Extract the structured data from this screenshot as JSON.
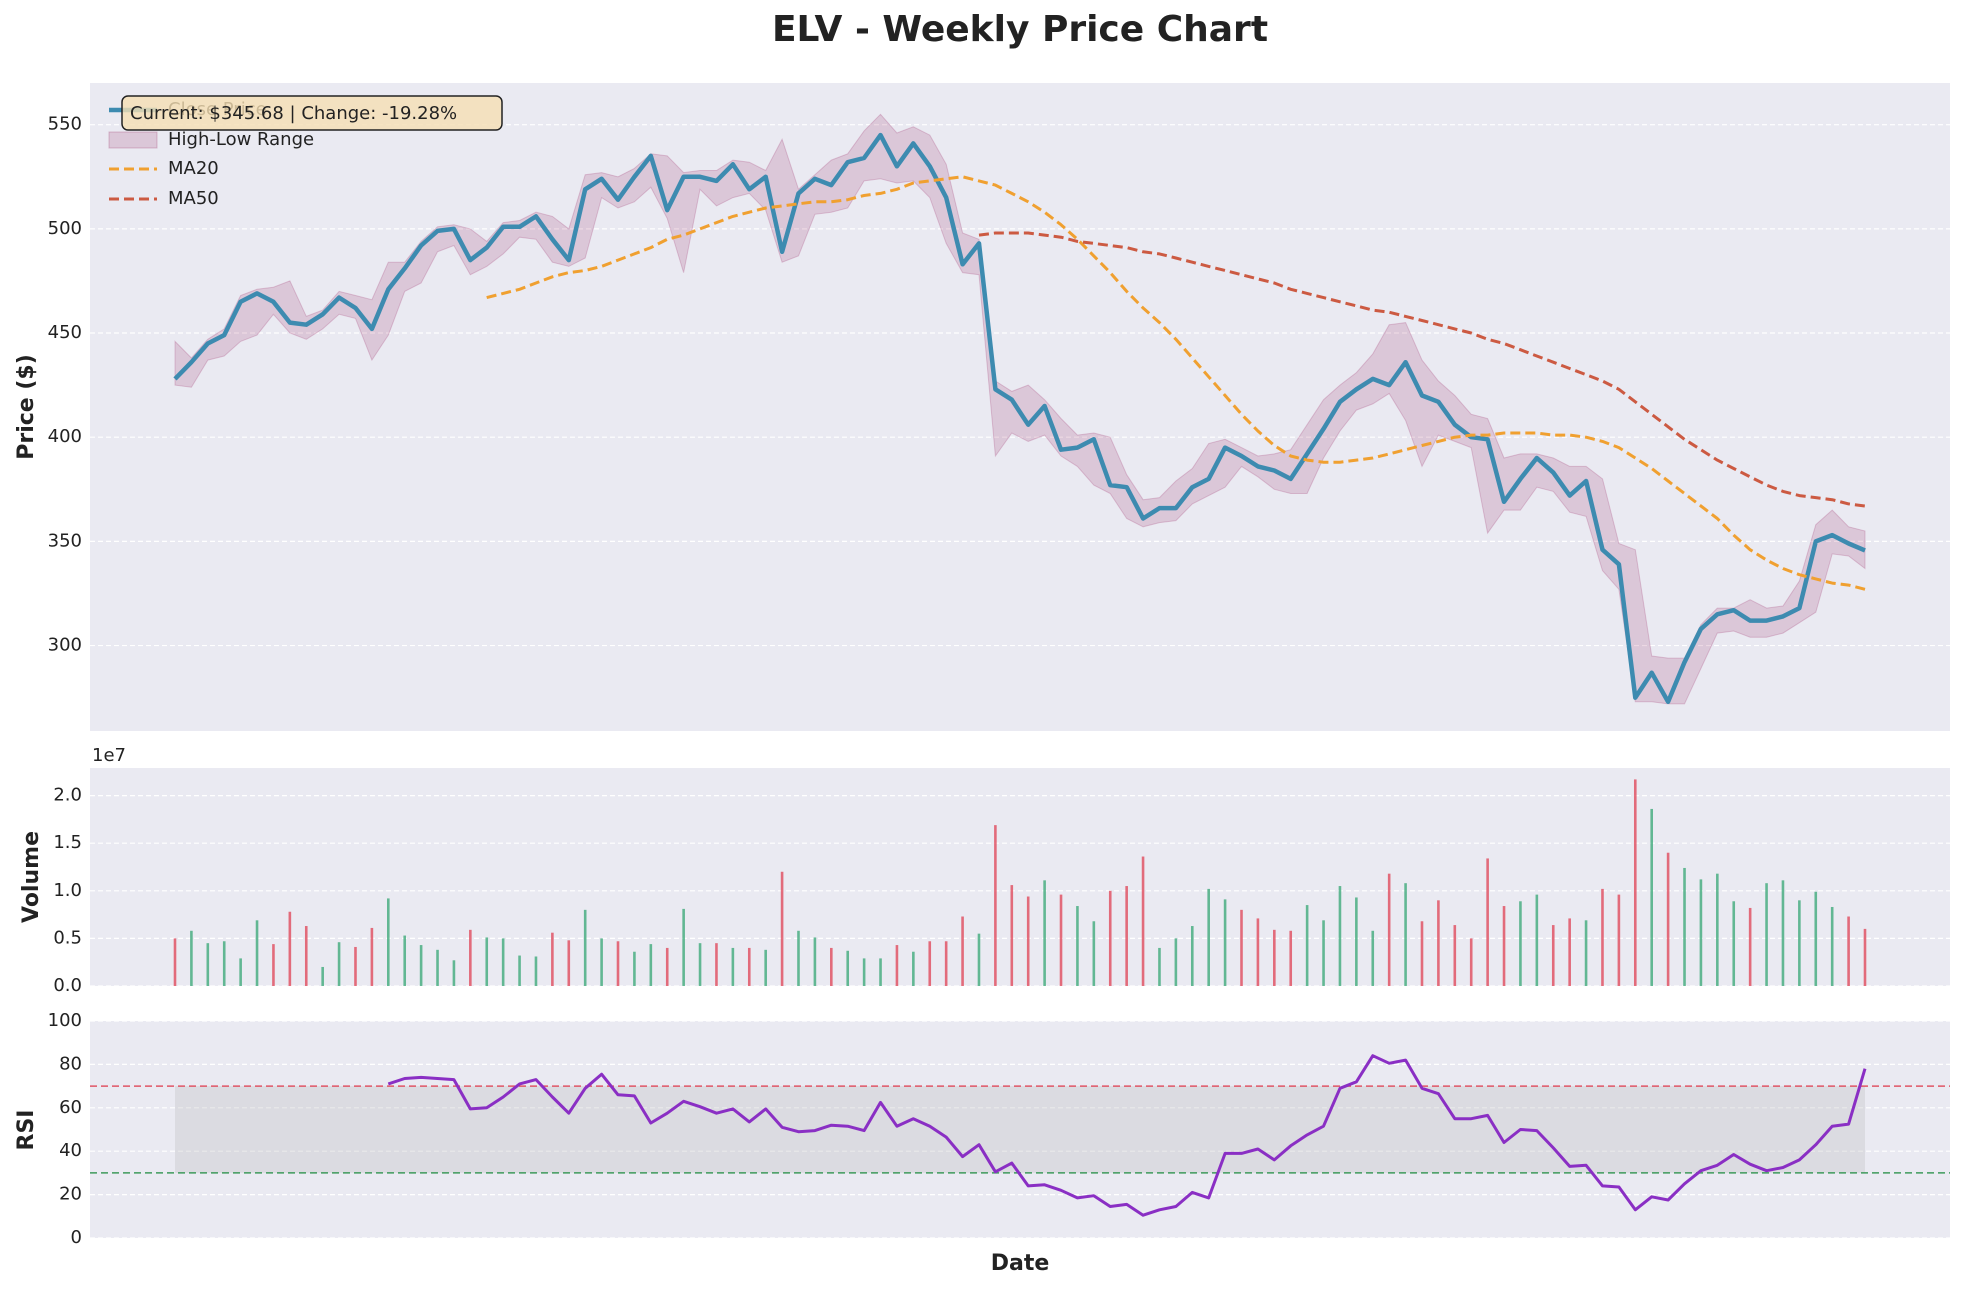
{
  "chart_data": [
    {
      "type": "line",
      "title": "ELV - Weekly Price Chart",
      "ylabel": "Price ($)",
      "ylim": [
        259,
        570
      ],
      "yticks": [
        300,
        350,
        400,
        450,
        500,
        550
      ],
      "grid": true,
      "legend": "upper left",
      "annotation": "Current: $345.68 | Change: -19.28%",
      "series": [
        {
          "name": "Close Price",
          "type": "line",
          "color": "#3d8bb0",
          "values": [
            428,
            436,
            445,
            449,
            465,
            469,
            465,
            455,
            454,
            459,
            467,
            462,
            452,
            471,
            481,
            492,
            499,
            500,
            485,
            491,
            501,
            501,
            506,
            495,
            485,
            519,
            524,
            514,
            525,
            535,
            509,
            525,
            525,
            523,
            531,
            519,
            525,
            489,
            517,
            524,
            521,
            532,
            534,
            545,
            530,
            541,
            530,
            515,
            483,
            493,
            423,
            418,
            406,
            415,
            394,
            395,
            399,
            377,
            376,
            361,
            366,
            366,
            376,
            380,
            395,
            391,
            386,
            384,
            380,
            392,
            404,
            417,
            423,
            428,
            425,
            436,
            420,
            417,
            406,
            400,
            399,
            369,
            380,
            390,
            383,
            372,
            379,
            346,
            339,
            275,
            287,
            273,
            292,
            308,
            315,
            317,
            312,
            312,
            314,
            318,
            350,
            353,
            349,
            345.68
          ]
        },
        {
          "name": "High-Low Range",
          "type": "band",
          "color": "#a23b72",
          "high": [
            446,
            438,
            447,
            452,
            468,
            471,
            472,
            475,
            458,
            461,
            470,
            468,
            466,
            484,
            484,
            494,
            501,
            502,
            500,
            494,
            503,
            504,
            508,
            506,
            500,
            526,
            527,
            525,
            529,
            536,
            535,
            527,
            528,
            528,
            533,
            532,
            528,
            543,
            519,
            526,
            533,
            536,
            547,
            555,
            546,
            549,
            545,
            531,
            498,
            495,
            427,
            422,
            425,
            418,
            409,
            401,
            402,
            400,
            382,
            370,
            371,
            379,
            385,
            397,
            399,
            395,
            391,
            392,
            394,
            406,
            418,
            425,
            431,
            440,
            454,
            455,
            437,
            427,
            420,
            411,
            409,
            390,
            392,
            392,
            390,
            386,
            386,
            380,
            349,
            346,
            295,
            294,
            294,
            310,
            318,
            318,
            322,
            318,
            319,
            331,
            358,
            365,
            357,
            355
          ],
          "low": [
            425,
            424,
            437,
            439,
            446,
            449,
            459,
            450,
            447,
            452,
            459,
            457,
            437,
            449,
            470,
            474,
            489,
            492,
            478,
            482,
            488,
            496,
            495,
            484,
            482,
            486,
            515,
            510,
            513,
            520,
            505,
            479,
            519,
            511,
            515,
            517,
            509,
            484,
            487,
            507,
            508,
            510,
            523,
            524,
            522,
            523,
            515,
            493,
            479,
            478,
            391,
            402,
            398,
            401,
            391,
            386,
            377,
            373,
            361,
            357,
            359,
            360,
            368,
            372,
            376,
            386,
            381,
            375,
            373,
            373,
            390,
            403,
            413,
            416,
            421,
            408,
            386,
            401,
            398,
            395,
            354,
            365,
            365,
            376,
            374,
            364,
            362,
            336,
            327,
            273,
            273,
            272,
            272,
            289,
            306,
            307,
            304,
            304,
            306,
            311,
            316,
            344,
            343,
            337
          ]
        },
        {
          "name": "MA20",
          "type": "line",
          "linestyle": "dashed",
          "color": "#f0a030",
          "values": [
            null,
            null,
            null,
            null,
            null,
            null,
            null,
            null,
            null,
            null,
            null,
            null,
            null,
            null,
            null,
            null,
            null,
            null,
            null,
            467,
            469,
            471,
            474,
            477,
            479,
            480,
            482,
            485,
            488,
            491,
            495,
            497,
            500,
            503,
            506,
            508,
            510,
            511,
            512,
            513,
            513,
            514,
            516,
            517,
            519,
            522,
            523,
            524,
            525,
            523,
            521,
            517,
            513,
            508,
            502,
            495,
            487,
            479,
            470,
            462,
            455,
            447,
            438,
            429,
            420,
            411,
            403,
            396,
            391,
            389,
            388,
            388,
            389,
            390,
            392,
            394,
            396,
            398,
            400,
            401,
            401,
            402,
            402,
            402,
            401,
            401,
            400,
            398,
            395,
            390,
            385,
            379,
            373,
            367,
            361,
            353,
            346,
            341,
            337,
            334,
            332,
            330,
            329,
            327
          ]
        },
        {
          "name": "MA50",
          "type": "line",
          "linestyle": "dashed",
          "color": "#cc5a42",
          "values": [
            null,
            null,
            null,
            null,
            null,
            null,
            null,
            null,
            null,
            null,
            null,
            null,
            null,
            null,
            null,
            null,
            null,
            null,
            null,
            null,
            null,
            null,
            null,
            null,
            null,
            null,
            null,
            null,
            null,
            null,
            null,
            null,
            null,
            null,
            null,
            null,
            null,
            null,
            null,
            null,
            null,
            null,
            null,
            null,
            null,
            null,
            null,
            null,
            null,
            497,
            498,
            498,
            498,
            497,
            496,
            494,
            493,
            492,
            491,
            489,
            488,
            486,
            484,
            482,
            480,
            478,
            476,
            474,
            471,
            469,
            467,
            465,
            463,
            461,
            460,
            458,
            456,
            454,
            452,
            450,
            447,
            445,
            442,
            439,
            436,
            433,
            430,
            427,
            423,
            417,
            411,
            405,
            399,
            394,
            389,
            385,
            381,
            377,
            374,
            372,
            371,
            370,
            368,
            367
          ]
        }
      ]
    },
    {
      "type": "bar",
      "ylabel": "Volume",
      "offset_label": "1e7",
      "up_color": "#4aae82",
      "down_color": "#e05566",
      "ylim": [
        0,
        22900000
      ],
      "yticks": [
        {
          "value": 0,
          "label": "0.0"
        },
        {
          "value": 5000000,
          "label": "0.5"
        },
        {
          "value": 10000000,
          "label": "1.0"
        },
        {
          "value": 15000000,
          "label": "1.5"
        },
        {
          "value": 20000000,
          "label": "2.0"
        }
      ],
      "grid": true,
      "values": [
        5000000,
        5800000,
        4500000,
        4700000,
        2900000,
        6900000,
        4400000,
        7800000,
        6300000,
        2000000,
        4600000,
        4100000,
        6100000,
        9200000,
        5300000,
        4300000,
        3800000,
        2700000,
        5900000,
        5100000,
        5000000,
        3200000,
        3100000,
        5600000,
        4800000,
        8000000,
        5000000,
        4700000,
        3600000,
        4400000,
        4000000,
        8100000,
        4500000,
        4500000,
        4000000,
        4000000,
        3800000,
        12000000,
        5800000,
        5100000,
        4000000,
        3700000,
        2900000,
        2900000,
        4300000,
        3600000,
        4700000,
        4700000,
        7300000,
        5500000,
        16900000,
        10600000,
        9400000,
        11100000,
        9600000,
        8400000,
        6800000,
        10000000,
        10500000,
        13600000,
        4000000,
        5000000,
        6300000,
        10200000,
        9100000,
        8000000,
        7100000,
        5900000,
        5800000,
        8500000,
        6900000,
        10500000,
        9300000,
        5800000,
        11800000,
        10800000,
        6800000,
        9000000,
        6400000,
        5000000,
        13400000,
        8400000,
        8900000,
        9600000,
        6400000,
        7100000,
        6900000,
        10200000,
        9600000,
        21700000,
        18600000,
        14000000,
        12400000,
        11200000,
        11800000,
        8900000,
        8200000,
        10800000,
        11100000,
        9000000,
        9900000,
        8300000,
        7300000,
        6000000
      ]
    },
    {
      "type": "line",
      "ylabel": "RSI",
      "xlabel": "Date",
      "ylim": [
        0,
        100
      ],
      "yticks": [
        0,
        20,
        40,
        60,
        80,
        100
      ],
      "grid": true,
      "overbought": 70,
      "overbought_color": "#e05566",
      "oversold": 30,
      "oversold_color": "#3f9a5c",
      "band_color": "#bbbbbb",
      "series": [
        {
          "name": "RSI",
          "color": "#8a2fc4",
          "values": [
            null,
            null,
            null,
            null,
            null,
            null,
            null,
            null,
            null,
            null,
            null,
            null,
            null,
            71,
            73.5,
            74,
            73.5,
            73,
            59.5,
            60,
            65,
            71,
            73,
            65,
            57.5,
            69,
            75.5,
            66,
            65.5,
            53,
            57.5,
            63,
            60.5,
            57.5,
            59.5,
            53.5,
            59.5,
            51,
            49,
            49.5,
            52,
            51.5,
            49.5,
            62.5,
            51.5,
            55,
            51.5,
            46.5,
            37.5,
            43,
            30.5,
            34.5,
            24,
            24.5,
            22,
            18.5,
            19.5,
            14.5,
            15.5,
            10.5,
            13,
            14.5,
            21,
            18.5,
            39,
            39,
            41,
            36,
            42.5,
            47.5,
            51.5,
            69,
            72,
            84,
            80.5,
            82,
            69,
            66.5,
            55,
            55,
            56.5,
            44,
            50,
            49.5,
            41.5,
            33,
            33.5,
            24,
            23.5,
            13,
            19,
            17.5,
            25,
            31,
            33.5,
            38.5,
            34,
            31,
            32.5,
            36,
            43,
            51.5,
            52.5,
            78
          ]
        }
      ]
    }
  ]
}
